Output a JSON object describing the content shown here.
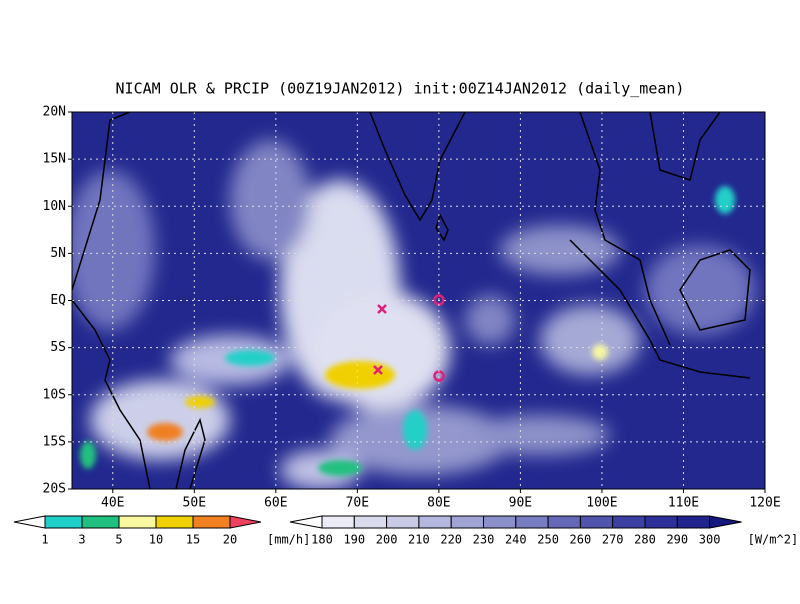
{
  "title": "NICAM OLR & PRCIP (00Z19JAN2012) init:00Z14JAN2012 (daily_mean)",
  "map": {
    "lat_labels": [
      "20N",
      "15N",
      "10N",
      "5N",
      "EQ",
      "5S",
      "10S",
      "15S",
      "20S"
    ],
    "lon_labels": [
      "40E",
      "50E",
      "60E",
      "70E",
      "80E",
      "90E",
      "100E",
      "110E",
      "120E"
    ]
  },
  "precip_legend": {
    "labels": [
      "1",
      "3",
      "5",
      "10",
      "15",
      "20"
    ],
    "unit": "[mm/h]",
    "colors": [
      "#ffffff",
      "#20d0c8",
      "#20c080",
      "#f8f8a0",
      "#f0d000",
      "#f08020",
      "#f04060"
    ]
  },
  "olr_legend": {
    "labels": [
      "180",
      "190",
      "200",
      "210",
      "220",
      "230",
      "240",
      "250",
      "260",
      "270",
      "280",
      "290",
      "300"
    ],
    "unit": "[W/m^2]",
    "colors": [
      "#ffffff",
      "#ececf6",
      "#dadcee",
      "#c8cae6",
      "#b4b8de",
      "#a0a4d4",
      "#8c90ca",
      "#787cc0",
      "#6468b6",
      "#5054ac",
      "#3c40a2",
      "#2c3098",
      "#20248c",
      "#141880"
    ]
  }
}
